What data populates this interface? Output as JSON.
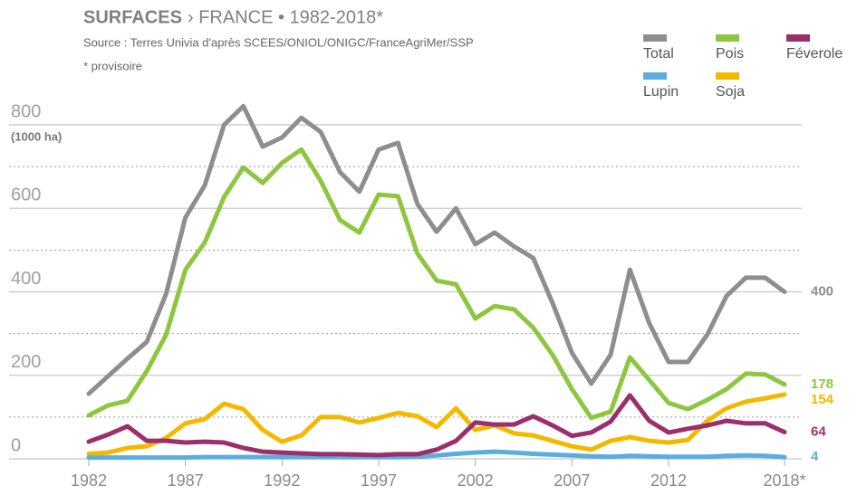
{
  "chart_data": {
    "type": "line",
    "title": "SURFACES",
    "title_suffix": "› FRANCE • 1982-2018*",
    "source": "Source : Terres Univia d'après SCEES/ONIOL/ONIGC/FranceAgriMer/SSP",
    "note": "* provisoire",
    "y_label": "(1000 ha)",
    "x": [
      1982,
      1983,
      1984,
      1985,
      1986,
      1987,
      1988,
      1989,
      1990,
      1991,
      1992,
      1993,
      1994,
      1995,
      1996,
      1997,
      1998,
      1999,
      2000,
      2001,
      2002,
      2003,
      2004,
      2005,
      2006,
      2007,
      2008,
      2009,
      2010,
      2011,
      2012,
      2013,
      2014,
      2015,
      2016,
      2017,
      2018
    ],
    "xlim": [
      1982,
      2018
    ],
    "xticks": [
      1982,
      1987,
      1992,
      1997,
      2002,
      2007,
      2012,
      {
        "value": 2018,
        "label": "2018*"
      }
    ],
    "ylim": [
      0,
      800
    ],
    "yticks": [
      0,
      200,
      400,
      600,
      800
    ],
    "minor_yticks": [
      100,
      300,
      500,
      700
    ],
    "grid": true,
    "legend": "top-right",
    "series": [
      {
        "name": "Total",
        "color": "#8e8e90",
        "values": [
          156,
          198,
          240,
          280,
          395,
          578,
          655,
          800,
          845,
          748,
          770,
          817,
          783,
          687,
          640,
          741,
          757,
          611,
          544,
          600,
          514,
          542,
          509,
          481,
          373,
          254,
          180,
          249,
          453,
          325,
          232,
          232,
          297,
          390,
          434,
          434,
          400
        ]
      },
      {
        "name": "Pois",
        "color": "#8dc63f",
        "values": [
          104,
          128,
          139,
          210,
          297,
          453,
          518,
          627,
          698,
          661,
          709,
          741,
          666,
          572,
          542,
          633,
          629,
          492,
          427,
          418,
          336,
          366,
          358,
          314,
          249,
          167,
          98,
          113,
          243,
          189,
          134,
          119,
          141,
          167,
          204,
          202,
          178
        ]
      },
      {
        "name": "Féverole",
        "color": "#9b2f6e",
        "values": [
          41,
          58,
          78,
          43,
          43,
          39,
          41,
          39,
          26,
          17,
          15,
          13,
          11,
          11,
          10,
          9,
          11,
          11,
          22,
          43,
          87,
          82,
          82,
          102,
          80,
          55,
          63,
          89,
          152,
          91,
          63,
          72,
          80,
          91,
          85,
          85,
          64
        ]
      },
      {
        "name": "Lupin",
        "color": "#5aaedf",
        "values": [
          3,
          3,
          3,
          3,
          3,
          3,
          4,
          4,
          4,
          4,
          4,
          4,
          4,
          4,
          4,
          4,
          4,
          5,
          8,
          12,
          15,
          17,
          15,
          12,
          10,
          8,
          6,
          5,
          7,
          6,
          5,
          5,
          5,
          7,
          8,
          7,
          4
        ]
      },
      {
        "name": "Soja",
        "color": "#f5b800",
        "values": [
          12,
          15,
          26,
          30,
          50,
          85,
          95,
          132,
          119,
          69,
          41,
          56,
          100,
          100,
          87,
          98,
          110,
          102,
          76,
          121,
          69,
          80,
          61,
          56,
          43,
          30,
          22,
          43,
          52,
          43,
          39,
          45,
          91,
          121,
          137,
          145,
          154
        ]
      }
    ]
  }
}
